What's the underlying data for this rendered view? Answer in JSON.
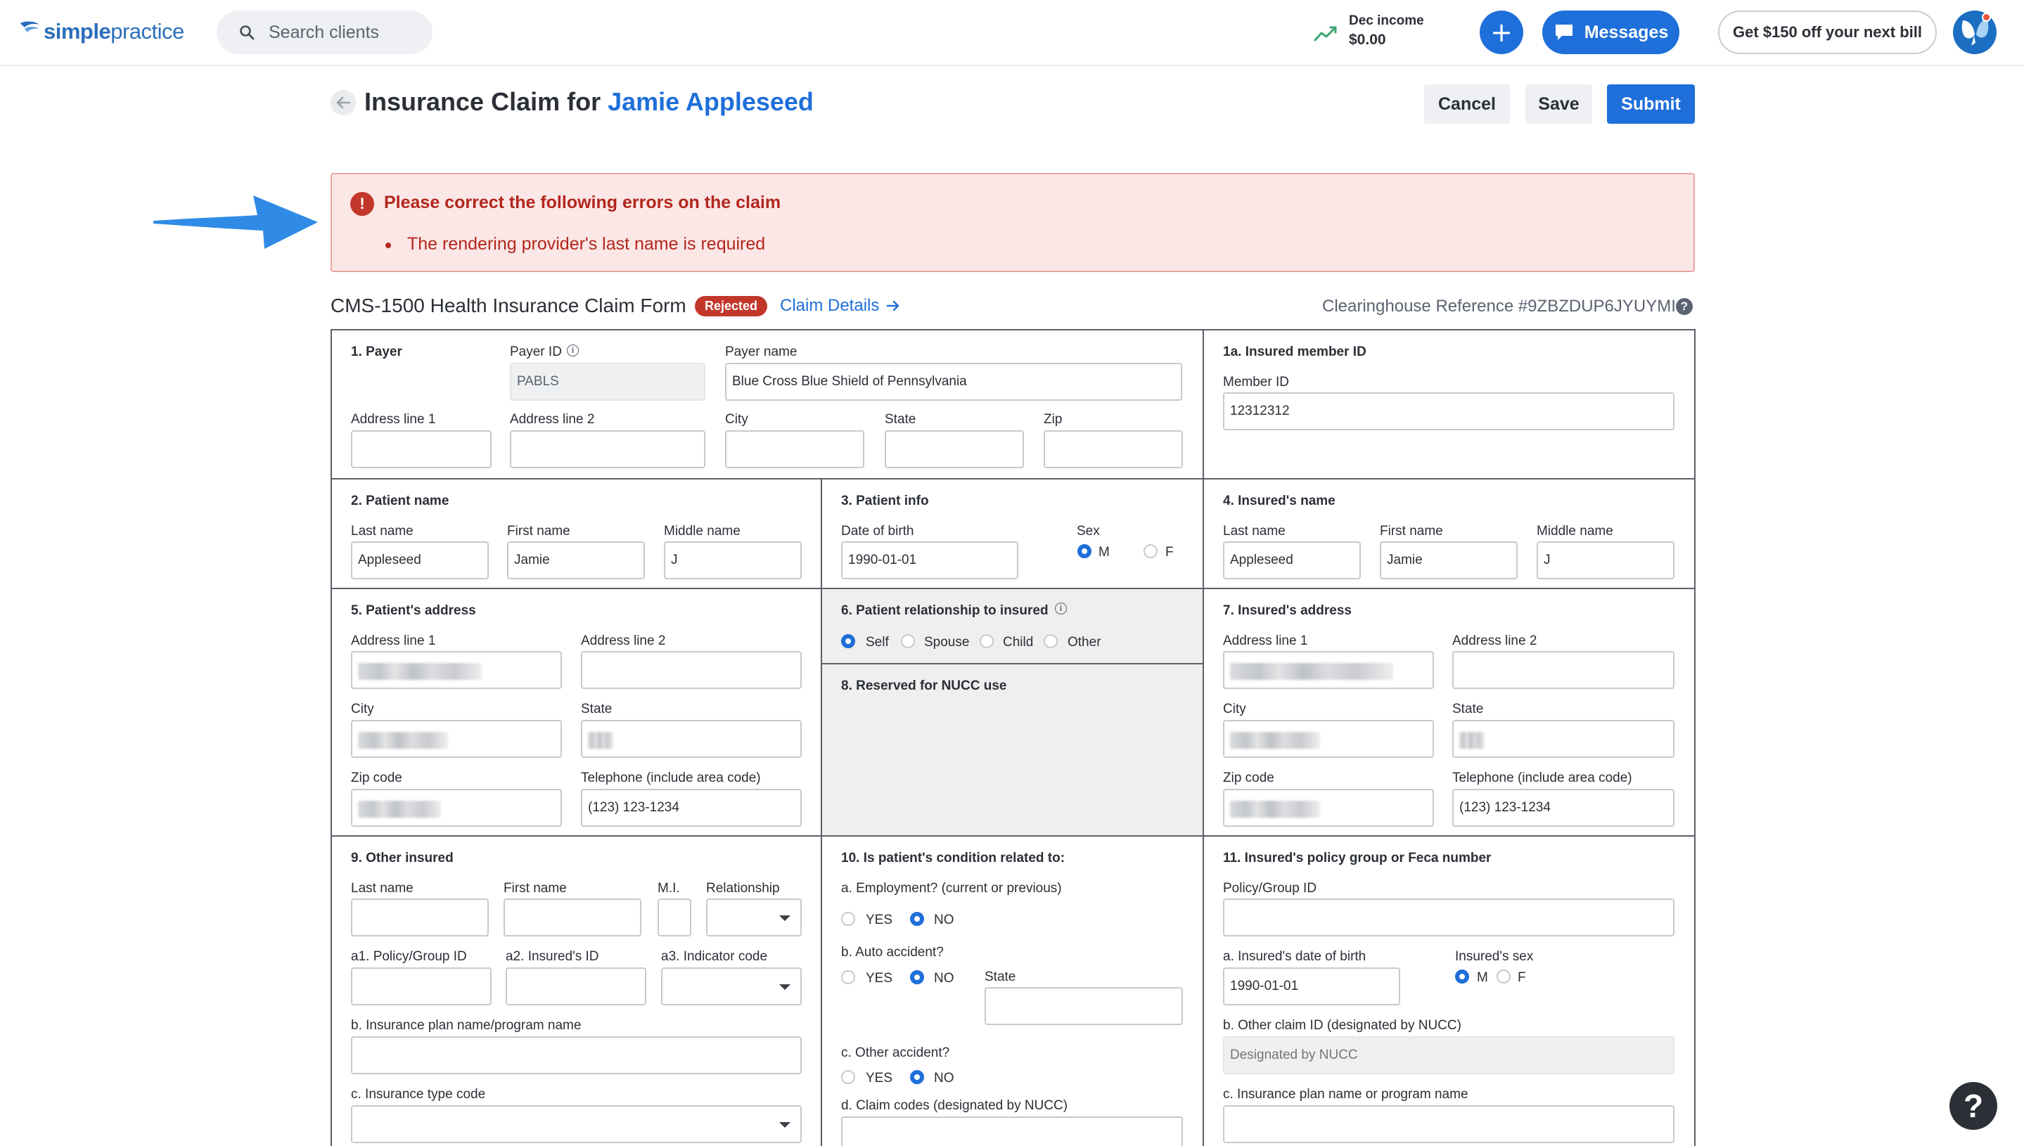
{
  "nav": {
    "logo_bold": "simple",
    "logo_rest": "practice",
    "search_placeholder": "Search clients",
    "income_label": "Dec income",
    "income_value": "$0.00",
    "plus_label": "+",
    "messages_label": "Messages",
    "promo_label": "Get $150 off your next bill"
  },
  "header": {
    "title_prefix": "Insurance Claim for",
    "client_name": "Jamie Appleseed",
    "cancel_label": "Cancel",
    "save_label": "Save",
    "submit_label": "Submit"
  },
  "error": {
    "icon": "!",
    "title": "Please correct the following errors on the claim",
    "items": [
      "The rendering provider's last name is required"
    ]
  },
  "form_header": {
    "title": "CMS-1500 Health Insurance Claim Form",
    "status_badge": "Rejected",
    "claim_details_link": "Claim Details",
    "clearinghouse_ref": "Clearinghouse Reference #9ZBZDUP6JYUYMI",
    "help_icon": "?"
  },
  "s1": {
    "title": "1. Payer",
    "payer_id_label": "Payer ID",
    "payer_id_value": "PABLS",
    "payer_name_label": "Payer name",
    "payer_name_value": "Blue Cross Blue Shield of Pennsylvania",
    "address1_label": "Address line 1",
    "address2_label": "Address line 2",
    "city_label": "City",
    "state_label": "State",
    "zip_label": "Zip"
  },
  "s1a": {
    "title": "1a. Insured member ID",
    "member_id_label": "Member ID",
    "member_id_value": "12312312"
  },
  "s2": {
    "title": "2. Patient name",
    "last_label": "Last name",
    "last_value": "Appleseed",
    "first_label": "First name",
    "first_value": "Jamie",
    "middle_label": "Middle name",
    "middle_value": "J"
  },
  "s3": {
    "title": "3. Patient info",
    "dob_label": "Date of birth",
    "dob_value": "1990-01-01",
    "sex_label": "Sex",
    "sex_m": "M",
    "sex_f": "F",
    "sex_selected": "M"
  },
  "s4": {
    "title": "4. Insured's name",
    "last_label": "Last name",
    "last_value": "Appleseed",
    "first_label": "First name",
    "first_value": "Jamie",
    "middle_label": "Middle name",
    "middle_value": "J"
  },
  "s5": {
    "title": "5. Patient's address",
    "address1_label": "Address line 1",
    "address2_label": "Address line 2",
    "city_label": "City",
    "state_label": "State",
    "zip_label": "Zip code",
    "phone_label": "Telephone (include area code)",
    "phone_value": "(123) 123-1234"
  },
  "s6": {
    "title": "6. Patient relationship to insured",
    "options": [
      "Self",
      "Spouse",
      "Child",
      "Other"
    ],
    "selected": "Self"
  },
  "s7": {
    "title": "7. Insured's address",
    "address1_label": "Address line 1",
    "address2_label": "Address line 2",
    "city_label": "City",
    "state_label": "State",
    "zip_label": "Zip code",
    "phone_label": "Telephone (include area code)",
    "phone_value": "(123) 123-1234"
  },
  "s8": {
    "title": "8. Reserved for NUCC use"
  },
  "s9": {
    "title": "9. Other insured",
    "last_label": "Last name",
    "first_label": "First name",
    "mi_label": "M.I.",
    "relationship_label": "Relationship",
    "policy_label": "a1. Policy/Group ID",
    "insured_id_label": "a2. Insured's ID",
    "indicator_label": "a3. Indicator code",
    "plan_label": "b. Insurance plan name/program name",
    "type_label": "c. Insurance type code"
  },
  "s10": {
    "title": "10. Is patient's condition related to:",
    "employment_label": "a. Employment? (current or previous)",
    "auto_label": "b. Auto accident?",
    "state_label": "State",
    "other_label": "c. Other accident?",
    "claim_codes_label": "d. Claim codes (designated by NUCC)",
    "yes": "YES",
    "no": "NO",
    "employment_selected": "NO",
    "auto_selected": "NO",
    "other_selected": "NO"
  },
  "s11": {
    "title": "11. Insured's policy group or Feca number",
    "policy_label": "Policy/Group ID",
    "dob_label": "a. Insured's date of birth",
    "dob_value": "1990-01-01",
    "sex_label": "Insured's sex",
    "sex_m": "M",
    "sex_f": "F",
    "sex_selected": "M",
    "other_claim_label": "b. Other claim ID (designated by NUCC)",
    "other_claim_placeholder": "Designated by NUCC",
    "plan_label": "c. Insurance plan name or program name"
  },
  "help_fab": "?",
  "colors": {
    "brand_blue": "#1e6fd9",
    "error_red": "#b3261e",
    "error_bg": "#fbe7e5",
    "rejected_badge": "#c3372b"
  }
}
